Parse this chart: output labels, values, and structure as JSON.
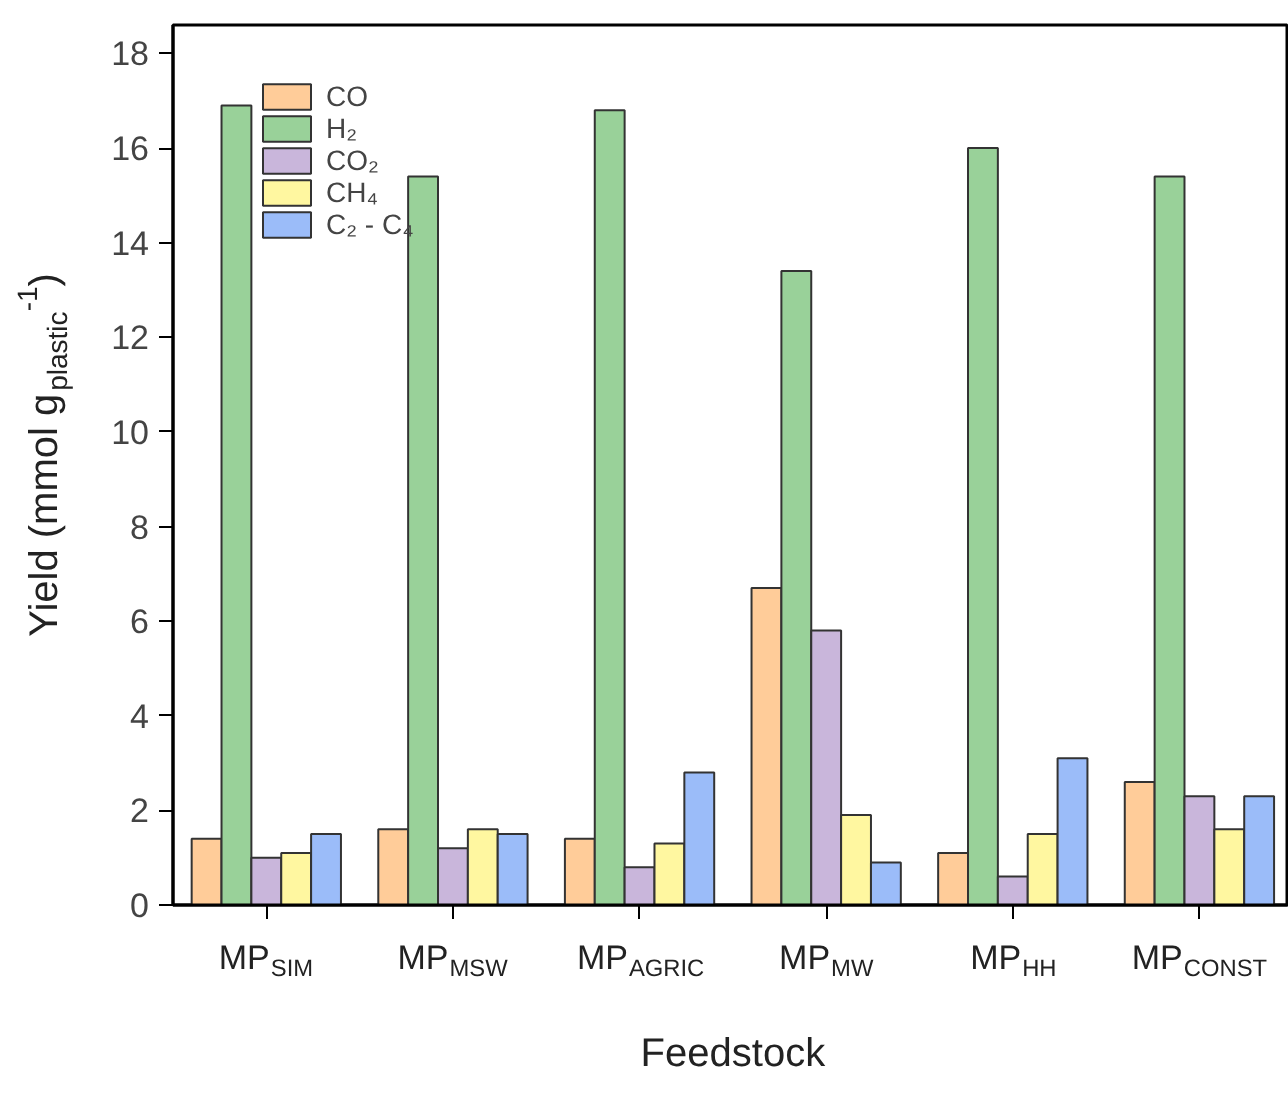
{
  "chart_data": {
    "type": "bar",
    "xlabel": "Feedstock",
    "ylabel": "Yield (mmol g$_{plastic}$$^{-1}$)",
    "categories": [
      "MP$_{SIM}$",
      "MP$_{MSW}$",
      "MP$_{AGRIC}$",
      "MP$_{MW}$",
      "MP$_{HH}$",
      "MP$_{CONST}$"
    ],
    "series": [
      {
        "name": "CO",
        "color": "#ffcc99",
        "values": [
          1.4,
          1.6,
          1.4,
          6.7,
          1.1,
          2.6
        ]
      },
      {
        "name": "H₂",
        "color": "#99d199",
        "values": [
          16.9,
          15.4,
          16.8,
          13.4,
          16.0,
          15.4
        ]
      },
      {
        "name": "CO₂",
        "color": "#c9b6db",
        "values": [
          1.0,
          1.2,
          0.8,
          5.8,
          0.6,
          2.3
        ]
      },
      {
        "name": "CH₄",
        "color": "#fff7a0",
        "values": [
          1.1,
          1.6,
          1.3,
          1.9,
          1.5,
          1.6
        ]
      },
      {
        "name": "C₂ - C₄",
        "color": "#9bbcf9",
        "values": [
          1.5,
          1.5,
          2.8,
          0.9,
          3.1,
          2.3
        ]
      }
    ],
    "ylim": [
      0,
      18.6
    ],
    "yticks": [
      0,
      2,
      4,
      6,
      8,
      10,
      12,
      14,
      16,
      18
    ],
    "legend": "top left"
  }
}
